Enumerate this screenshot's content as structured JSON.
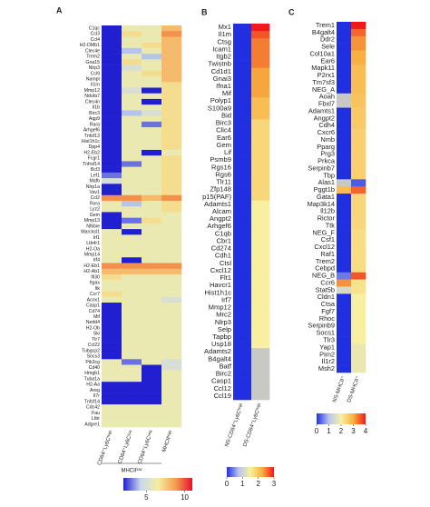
{
  "chart_data": [
    {
      "type": "heatmap",
      "panel": "A",
      "rows": [
        "C1qc",
        "Ccl3",
        "Ccl4",
        "H2-DMb1",
        "Clec4e",
        "Trem2",
        "Gna15",
        "Nlrp3",
        "Ccl9",
        "Nampt",
        "Il1rn",
        "Mmp12",
        "Ndufa7",
        "Clec4n",
        "Il1b",
        "Birc3",
        "Aqp9",
        "Rara",
        "Arhgef6",
        "Tnfsf13",
        "Hist1h1c",
        "Dpp4",
        "H2-Eb2",
        "Fcgr1",
        "Tnfrsf14",
        "Bcl3",
        "Lef1",
        "Mafb",
        "Nlrp1a",
        "Vav1",
        "Ccl2",
        "Rxra",
        "Lyz2",
        "Gem",
        "Mmp13",
        "Nfkbie",
        "Marcksl1",
        "Irf1",
        "Ltb4r1",
        "H2-Oa",
        "Mmp14",
        "Irf4",
        "H2-Eb1",
        "H2-Ab1",
        "Ifi30",
        "Itgax",
        "Itk",
        "Ccr7",
        "Acox1",
        "Casp1",
        "Cd74",
        "Mif",
        "Nedd4",
        "H2-Ob",
        "Ski",
        "Tlr7",
        "Ccl22",
        "Tubgcp2",
        "Socs3",
        "Pik3cg",
        "Cd40",
        "Hmgb1",
        "Tuba1a",
        "H2-Aa",
        "Areg",
        "Il7r",
        "Tnfsf14",
        "Cdc42",
        "Fau",
        "Ltbr",
        "Adgre1"
      ],
      "columns": [
        "CD64⁺Ly6Cʰⁱᵍʰ",
        "CD64⁺Ly6Cˡᵒʷ",
        "CD64⁺Ly6Cⁿᵉᵍ",
        "MHCIIʰⁱᵍʰ"
      ],
      "column_group": "MHCIIˡᵒʷ",
      "values": [
        [
          2,
          6,
          6,
          8
        ],
        [
          2,
          7,
          6,
          9
        ],
        [
          2,
          6,
          6,
          8
        ],
        [
          2,
          6,
          7,
          8
        ],
        [
          2,
          4,
          6,
          8
        ],
        [
          2,
          6,
          4,
          8
        ],
        [
          2,
          7,
          6,
          8
        ],
        [
          2,
          5,
          6,
          8
        ],
        [
          2,
          6,
          7,
          8
        ],
        [
          2,
          6,
          6,
          8
        ],
        [
          2,
          6,
          6,
          7
        ],
        [
          2,
          5,
          2,
          7
        ],
        [
          2,
          6,
          6,
          7
        ],
        [
          2,
          6,
          2,
          7
        ],
        [
          2,
          6,
          6,
          7
        ],
        [
          2,
          4,
          5,
          7
        ],
        [
          2,
          6,
          6,
          7
        ],
        [
          2,
          6,
          3,
          7
        ],
        [
          2,
          6,
          6,
          7
        ],
        [
          2,
          6,
          6,
          7
        ],
        [
          2,
          6,
          6,
          7
        ],
        [
          2,
          6,
          6,
          7
        ],
        [
          2,
          6,
          2,
          6
        ],
        [
          2,
          6,
          6,
          7
        ],
        [
          2,
          3,
          6,
          7
        ],
        [
          2,
          6,
          6,
          7
        ],
        [
          3,
          6,
          6,
          7
        ],
        [
          5,
          6,
          6,
          7
        ],
        [
          2,
          6,
          6,
          7
        ],
        [
          2,
          6,
          6,
          7
        ],
        [
          9,
          9,
          8,
          9
        ],
        [
          6,
          4,
          6,
          7
        ],
        [
          6,
          6,
          6,
          7
        ],
        [
          2,
          6,
          6,
          6
        ],
        [
          2,
          3,
          7,
          6
        ],
        [
          2,
          6,
          6,
          6
        ],
        [
          6,
          2,
          6,
          6
        ],
        [
          6,
          6,
          6,
          6
        ],
        [
          6,
          6,
          6,
          6
        ],
        [
          6,
          6,
          6,
          6
        ],
        [
          6,
          6,
          6,
          6
        ],
        [
          6,
          2,
          6,
          6
        ],
        [
          9,
          9,
          9,
          9
        ],
        [
          8,
          8,
          8,
          8
        ],
        [
          7,
          6,
          6,
          6
        ],
        [
          6,
          6,
          6,
          6
        ],
        [
          6,
          6,
          6,
          6
        ],
        [
          7,
          6,
          6,
          6
        ],
        [
          6,
          6,
          6,
          5
        ],
        [
          2,
          6,
          6,
          6
        ],
        [
          2,
          6,
          6,
          6
        ],
        [
          2,
          6,
          6,
          6
        ],
        [
          2,
          6,
          6,
          6
        ],
        [
          2,
          6,
          6,
          6
        ],
        [
          2,
          6,
          6,
          6
        ],
        [
          2,
          6,
          6,
          6
        ],
        [
          2,
          6,
          6,
          6
        ],
        [
          2,
          6,
          6,
          6
        ],
        [
          2,
          6,
          6,
          6
        ],
        [
          6,
          3,
          6,
          5
        ],
        [
          6,
          6,
          2,
          5
        ],
        [
          6,
          6,
          2,
          6
        ],
        [
          6,
          6,
          2,
          6
        ],
        [
          2,
          2,
          2,
          6
        ],
        [
          2,
          2,
          2,
          6
        ],
        [
          2,
          2,
          2,
          6
        ],
        [
          2,
          2,
          2,
          6
        ],
        [
          6,
          6,
          6,
          6
        ],
        [
          6,
          6,
          6,
          6
        ],
        [
          6,
          6,
          6,
          6
        ],
        [
          6,
          6,
          6,
          6
        ]
      ],
      "clim": [
        2,
        11
      ],
      "cticks": [
        5,
        10
      ],
      "colors": [
        "#2020d0",
        "#c8d8f0",
        "#f4eea0",
        "#f5a050",
        "#e81030"
      ],
      "na_color": "#c8c8c4"
    },
    {
      "type": "heatmap",
      "panel": "B",
      "rows": [
        "Mx1",
        "Il1m",
        "Ctsg",
        "Icam1",
        "Itgb2",
        "Twistnb",
        "Cd1d1",
        "Gnai3",
        "Ifna1",
        "Mif",
        "Polyp1",
        "S100a9",
        "Bid",
        "Birc3",
        "Clic4",
        "Ear6",
        "Gem",
        "Lif",
        "Psmb9",
        "Rgs16",
        "Rgs6",
        "Tlr11",
        "Zfp148",
        "p15(PAF)",
        "Adamts1",
        "Alcam",
        "Angpt2",
        "Arhgef6",
        "C1qb",
        "Cbr1",
        "Cd274",
        "Cdh1",
        "Ctsl",
        "Cxcl12",
        "Flt1",
        "Havcr1",
        "Hist1h1c",
        "Irf7",
        "Mmp12",
        "Mrc2",
        "Nlrp3",
        "Selp",
        "Tapbp",
        "Usp18",
        "Adamts2",
        "B4galt4",
        "Batf",
        "Birc2",
        "Casp1",
        "Ccl12",
        "Ccl19"
      ],
      "columns": [
        "NS-CD64⁺Ly6Cʰⁱᵍʰ",
        "DS-CD64⁺Ly6Cʰⁱᵍʰ"
      ],
      "values": [
        [
          0,
          3.0
        ],
        [
          0,
          2.7
        ],
        [
          0,
          2.5
        ],
        [
          0,
          2.5
        ],
        [
          0,
          2.5
        ],
        [
          0,
          2.5
        ],
        [
          0,
          2.3
        ],
        [
          0,
          2.3
        ],
        [
          0,
          2.3
        ],
        [
          0,
          2.3
        ],
        [
          0,
          2.1
        ],
        [
          0,
          2.1
        ],
        [
          0,
          2.1
        ],
        [
          0,
          1.8
        ],
        [
          0,
          1.8
        ],
        [
          0,
          1.8
        ],
        [
          0,
          1.8
        ],
        [
          0,
          1.8
        ],
        [
          0,
          1.8
        ],
        [
          0,
          1.8
        ],
        [
          0,
          1.8
        ],
        [
          0,
          1.8
        ],
        [
          0,
          1.8
        ],
        [
          0,
          1.8
        ],
        [
          0,
          1.5
        ],
        [
          0,
          1.5
        ],
        [
          0,
          1.5
        ],
        [
          0,
          1.5
        ],
        [
          0,
          1.5
        ],
        [
          0,
          1.5
        ],
        [
          0,
          1.5
        ],
        [
          0,
          1.5
        ],
        [
          0,
          1.5
        ],
        [
          0,
          1.5
        ],
        [
          0,
          1.5
        ],
        [
          0,
          1.5
        ],
        [
          0,
          1.5
        ],
        [
          0,
          1.5
        ],
        [
          0,
          1.5
        ],
        [
          0,
          1.5
        ],
        [
          0,
          1.5
        ],
        [
          0,
          1.5
        ],
        [
          0,
          1.5
        ],
        [
          0,
          1.5
        ],
        [
          0,
          null
        ],
        [
          0,
          null
        ],
        [
          0,
          null
        ],
        [
          0,
          null
        ],
        [
          0,
          null
        ],
        [
          0,
          null
        ],
        [
          0,
          null
        ]
      ],
      "clim": [
        0,
        3
      ],
      "cticks": [
        0,
        1,
        2,
        3
      ],
      "colors": [
        "#2030e0",
        "#b8c4f0",
        "#f8f0a0",
        "#f8b040",
        "#f01818"
      ],
      "na_color": "#c8c8c4"
    },
    {
      "type": "heatmap",
      "panel": "C",
      "rows": [
        "Trem1",
        "B4galt4",
        "Ddr2",
        "Sele",
        "Col10a1",
        "Ear6",
        "Mapk11",
        "P2rx1",
        "Tm7sf3",
        "NEG_A",
        "Aoah",
        "Fbxl7",
        "Adamts1",
        "Angpt2",
        "Cdh4",
        "Cxcr6",
        "Nmb",
        "Pparg",
        "Prg3",
        "Prkca",
        "Serpinb7",
        "Tbp",
        "Alas1",
        "Pggt1b",
        "Gata1",
        "Map3k14",
        "Il12b",
        "Rictor",
        "Ttk",
        "NEG_F",
        "Csf1",
        "Cxcl12",
        "Raf1",
        "Trem2",
        "Cebpd",
        "NEG_B",
        "Ccr6",
        "Stat5b",
        "Cldn1",
        "Ctsa",
        "Fgf7",
        "Rhoc",
        "Serpinb9",
        "Socs1",
        "Tlr3",
        "Yap1",
        "Pim2",
        "Il1r2",
        "Msh2"
      ],
      "columns": [
        "NS-MHCII⁺",
        "DS-MHCII⁺"
      ],
      "values": [
        [
          0,
          4
        ],
        [
          0,
          3.5
        ],
        [
          0,
          3.2
        ],
        [
          0,
          3.2
        ],
        [
          0,
          3
        ],
        [
          0,
          3
        ],
        [
          0,
          2.8
        ],
        [
          0,
          2.8
        ],
        [
          0,
          2.8
        ],
        [
          0,
          2.8
        ],
        [
          null,
          2.7
        ],
        [
          null,
          2.7
        ],
        [
          0,
          2.6
        ],
        [
          0,
          2.6
        ],
        [
          0,
          2.6
        ],
        [
          0,
          2.5
        ],
        [
          0,
          2.5
        ],
        [
          0,
          2.5
        ],
        [
          0,
          2.5
        ],
        [
          0,
          2.5
        ],
        [
          0,
          2.5
        ],
        [
          0,
          2.5
        ],
        [
          null,
          0.3
        ],
        [
          2.8,
          3.5
        ],
        [
          0,
          2.4
        ],
        [
          0,
          2.4
        ],
        [
          0,
          2.4
        ],
        [
          0,
          2.4
        ],
        [
          0,
          2.4
        ],
        [
          0,
          2.3
        ],
        [
          0,
          2.3
        ],
        [
          0,
          2.3
        ],
        [
          0,
          2.3
        ],
        [
          0,
          2.3
        ],
        [
          0,
          2.3
        ],
        [
          0.5,
          3.6
        ],
        [
          3.2,
          2.2
        ],
        [
          1.5,
          2.2
        ],
        [
          0,
          2
        ],
        [
          0,
          2
        ],
        [
          0,
          2
        ],
        [
          0,
          2
        ],
        [
          0,
          2
        ],
        [
          0,
          2
        ],
        [
          0,
          2
        ],
        [
          0,
          1.8
        ],
        [
          0,
          1.8
        ],
        [
          0,
          1.8
        ],
        [
          0,
          1.8
        ]
      ],
      "clim": [
        0,
        4
      ],
      "cticks": [
        0,
        1,
        2,
        3,
        4
      ],
      "colors": [
        "#2030e0",
        "#b8c4f0",
        "#f8f0a0",
        "#f8b040",
        "#f01818"
      ],
      "na_color": "#c8c8c4"
    }
  ]
}
